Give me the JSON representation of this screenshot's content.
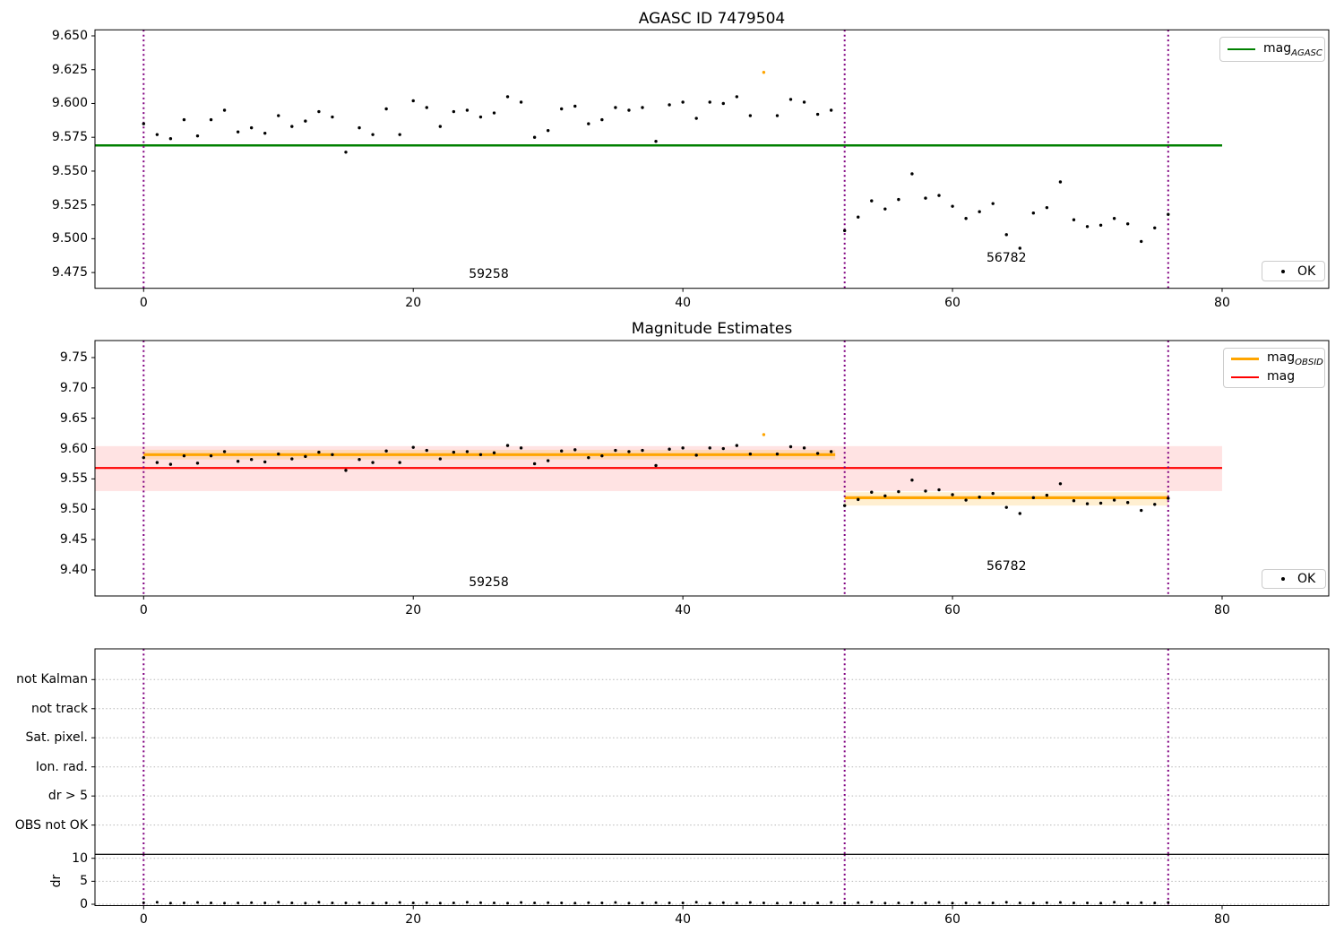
{
  "colors": {
    "agasc_line": "#008000",
    "mag_line": "#ff0000",
    "obsid_line": "#ffa500",
    "vline": "#800080",
    "points": "#000000",
    "flagged_point": "#ffa500",
    "mag_band": "rgba(255,0,0,0.11)",
    "obsid_band": "rgba(255,165,0,0.18)",
    "gridline": "#b8b8b8"
  },
  "chart_meta": {
    "xticks": {
      "values": [
        0,
        20,
        40,
        60,
        80
      ],
      "labels": [
        "0",
        "20",
        "40",
        "60",
        "80"
      ]
    }
  },
  "chart_data": [
    {
      "id": "mag_obs",
      "type": "scatter",
      "title": "AGASC ID 7479504",
      "ylim": [
        9.463,
        9.654
      ],
      "xlim": [
        -3.6,
        88
      ],
      "ytick_values": [
        9.65,
        9.625,
        9.6,
        9.575,
        9.55,
        9.525,
        9.5,
        9.475
      ],
      "ytick_labels": [
        "9.650",
        "9.625",
        "9.600",
        "9.575",
        "9.550",
        "9.525",
        "9.500",
        "9.475"
      ],
      "legend": {
        "line_main": "mag",
        "line_sub": "AGASC",
        "ok": "OK"
      },
      "hline": {
        "value": 9.569,
        "x0": -3.6,
        "x1": 80
      },
      "vlines": [
        0,
        52,
        76
      ],
      "points": {
        "flag_index": 46,
        "x": [
          0,
          1,
          2,
          3,
          4,
          5,
          6,
          7,
          8,
          9,
          10,
          11,
          12,
          13,
          14,
          15,
          16,
          17,
          18,
          19,
          20,
          21,
          22,
          23,
          24,
          25,
          26,
          27,
          28,
          29,
          30,
          31,
          32,
          33,
          34,
          35,
          36,
          37,
          38,
          39,
          40,
          41,
          42,
          43,
          44,
          45,
          46,
          47,
          48,
          49,
          50,
          51,
          52,
          53,
          54,
          55,
          56,
          57,
          58,
          59,
          60,
          61,
          62,
          63,
          64,
          65,
          66,
          67,
          68,
          69,
          70,
          71,
          72,
          73,
          74,
          75,
          76
        ],
        "y": [
          9.585,
          9.577,
          9.574,
          9.588,
          9.576,
          9.588,
          9.595,
          9.579,
          9.582,
          9.578,
          9.591,
          9.583,
          9.587,
          9.594,
          9.59,
          9.564,
          9.582,
          9.577,
          9.596,
          9.577,
          9.602,
          9.597,
          9.583,
          9.594,
          9.595,
          9.59,
          9.593,
          9.605,
          9.601,
          9.575,
          9.58,
          9.596,
          9.598,
          9.585,
          9.588,
          9.597,
          9.595,
          9.597,
          9.572,
          9.599,
          9.601,
          9.589,
          9.601,
          9.6,
          9.605,
          9.591,
          9.623,
          9.591,
          9.603,
          9.601,
          9.592,
          9.595,
          9.506,
          9.516,
          9.528,
          9.522,
          9.529,
          9.548,
          9.53,
          9.532,
          9.524,
          9.515,
          9.52,
          9.526,
          9.503,
          9.493,
          9.519,
          9.523,
          9.542,
          9.514,
          9.509,
          9.51,
          9.515,
          9.511,
          9.498,
          9.508,
          9.518
        ]
      },
      "annotations": [
        {
          "text": "59258",
          "x": 25.6,
          "y": 9.474
        },
        {
          "text": "56782",
          "x": 64,
          "y": 9.486
        }
      ]
    },
    {
      "id": "mag_est",
      "type": "scatter",
      "title": "Magnitude Estimates",
      "ylim": [
        9.358,
        9.775
      ],
      "ytick_values": [
        9.75,
        9.7,
        9.65,
        9.6,
        9.55,
        9.5,
        9.45,
        9.4
      ],
      "ytick_labels": [
        "9.75",
        "9.70",
        "9.65",
        "9.60",
        "9.55",
        "9.50",
        "9.45",
        "9.40"
      ],
      "legend": {
        "row1_main": "mag",
        "row1_sub": "OBSID",
        "row2_main": "mag",
        "row2_sub": "",
        "ok": "OK"
      },
      "mag_line": {
        "value": 9.568,
        "band": [
          9.53,
          9.604
        ],
        "x0": -3.6,
        "x1": 80
      },
      "obsid_segments": [
        {
          "obsid": "59258",
          "x0": 0,
          "x1": 51.3,
          "value": 9.59,
          "band": [
            9.582,
            9.598
          ]
        },
        {
          "obsid": "56782",
          "x0": 52,
          "x1": 76,
          "value": 9.519,
          "band": [
            9.506,
            9.528
          ]
        }
      ],
      "vlines": [
        0,
        52,
        76
      ],
      "points_ref": "mag_obs",
      "annotations": [
        {
          "text": "59258",
          "x": 25.6,
          "y": 9.379
        },
        {
          "text": "56782",
          "x": 64,
          "y": 9.406
        }
      ]
    },
    {
      "id": "flags",
      "type": "scatter",
      "categories": [
        "not Kalman",
        "not track",
        "Sat. pixel.",
        "Ion. rad.",
        "dr > 5",
        "OBS not OK"
      ],
      "vlines": [
        0,
        52,
        76
      ],
      "points": {
        "x": [],
        "y": []
      }
    },
    {
      "id": "dr",
      "type": "scatter",
      "ylabel": "dr",
      "ytick_values": [
        0,
        5,
        10
      ],
      "ytick_labels": [
        "0",
        "5",
        "10"
      ],
      "vlines": [
        0,
        52,
        76
      ],
      "points": {
        "x": [
          0,
          1,
          2,
          3,
          4,
          5,
          6,
          7,
          8,
          9,
          10,
          11,
          12,
          13,
          14,
          15,
          16,
          17,
          18,
          19,
          20,
          21,
          22,
          23,
          24,
          25,
          26,
          27,
          28,
          29,
          30,
          31,
          32,
          33,
          34,
          35,
          36,
          37,
          38,
          39,
          40,
          41,
          42,
          43,
          44,
          45,
          46,
          47,
          48,
          49,
          50,
          51,
          52,
          53,
          54,
          55,
          56,
          57,
          58,
          59,
          60,
          61,
          62,
          63,
          64,
          65,
          66,
          67,
          68,
          69,
          70,
          71,
          72,
          73,
          74,
          75,
          76
        ],
        "y": [
          0.35,
          0.45,
          0.25,
          0.3,
          0.4,
          0.3,
          0.25,
          0.3,
          0.35,
          0.3,
          0.45,
          0.3,
          0.25,
          0.45,
          0.3,
          0.3,
          0.35,
          0.25,
          0.3,
          0.4,
          0.3,
          0.35,
          0.25,
          0.3,
          0.45,
          0.35,
          0.3,
          0.25,
          0.4,
          0.3,
          0.35,
          0.3,
          0.25,
          0.35,
          0.3,
          0.4,
          0.25,
          0.3,
          0.35,
          0.3,
          0.3,
          0.45,
          0.25,
          0.35,
          0.3,
          0.4,
          0.3,
          0.25,
          0.35,
          0.3,
          0.3,
          0.4,
          0.3,
          0.35,
          0.45,
          0.25,
          0.3,
          0.35,
          0.3,
          0.4,
          0.25,
          0.3,
          0.35,
          0.3,
          0.45,
          0.3,
          0.25,
          0.35,
          0.4,
          0.3,
          0.3,
          0.25,
          0.45,
          0.3,
          0.35,
          0.3,
          0.4
        ]
      }
    }
  ]
}
